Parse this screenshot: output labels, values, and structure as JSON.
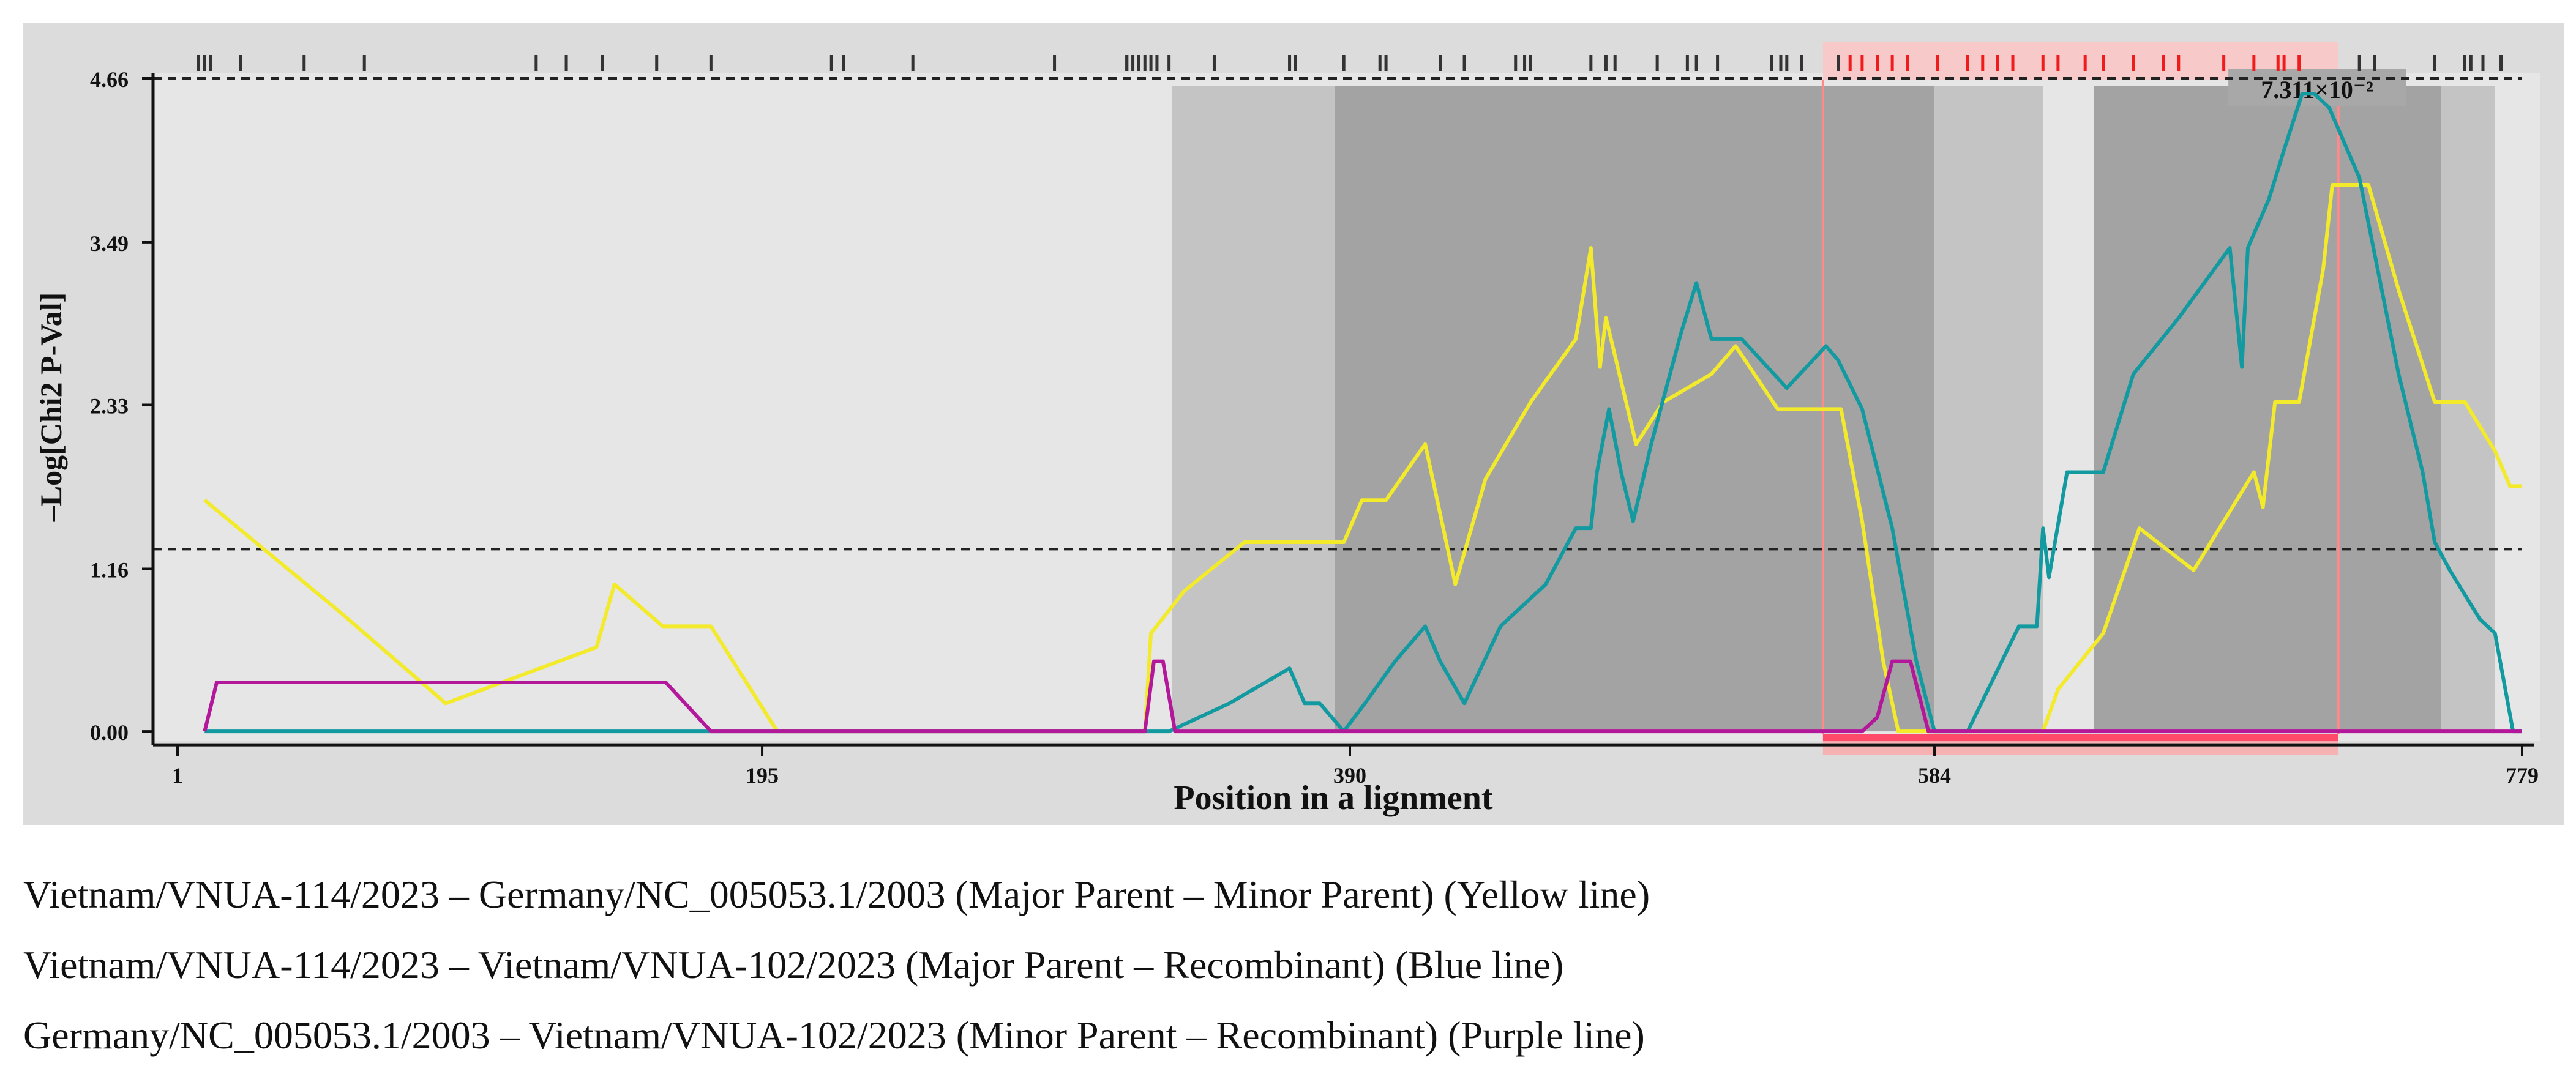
{
  "chart_data": {
    "type": "line",
    "ylabel": "–Log[Chi2 P-Val]",
    "xlabel": "Position in a lignment",
    "x_ticks": [
      1,
      195,
      390,
      584,
      779
    ],
    "y_ticks": [
      "0.00",
      "1.16",
      "2.33",
      "3.49",
      "4.66"
    ],
    "y_tick_values": [
      0.0,
      1.16,
      2.33,
      3.49,
      4.66
    ],
    "xlim": [
      1,
      779
    ],
    "ylim": [
      -0.1,
      4.66
    ],
    "pvalue_label": "7.311×10⁻²",
    "reference_lines": [
      {
        "name": "max-threshold",
        "y": 4.66
      },
      {
        "name": "significance-threshold",
        "y": 1.3
      }
    ],
    "recombination_region": {
      "start": 547,
      "end": 718
    },
    "shaded_regions": [
      {
        "start": 331,
        "end": 385,
        "shade": "light"
      },
      {
        "start": 385,
        "end": 547,
        "shade": "dark"
      },
      {
        "start": 547,
        "end": 584,
        "shade": "dark"
      },
      {
        "start": 584,
        "end": 620,
        "shade": "light"
      },
      {
        "start": 637,
        "end": 752,
        "shade": "dark"
      },
      {
        "start": 752,
        "end": 770,
        "shade": "light"
      }
    ],
    "site_ticks": [
      8,
      10,
      12,
      22,
      43,
      63,
      120,
      130,
      142,
      160,
      178,
      218,
      222,
      245,
      292,
      316,
      316,
      318,
      320,
      322,
      324,
      326,
      330,
      345,
      370,
      372,
      388,
      400,
      402,
      420,
      428,
      445,
      448,
      450,
      470,
      475,
      478,
      492,
      502,
      505,
      512,
      530,
      533,
      535,
      540,
      552,
      556,
      560,
      565,
      570,
      575,
      585,
      595,
      600,
      605,
      610,
      620,
      625,
      634,
      640,
      650,
      660,
      665,
      680,
      690,
      698,
      700,
      705,
      725,
      730,
      750,
      760,
      762,
      766,
      772
    ],
    "red_site_ticks": [
      556,
      560,
      565,
      570,
      575,
      585,
      595,
      600,
      605,
      610,
      620,
      625,
      634,
      640,
      650,
      660,
      665,
      680,
      690,
      698,
      700,
      705
    ],
    "series": [
      {
        "name": "Yellow line",
        "color": "#f2ea2b",
        "points": [
          [
            10,
            1.65
          ],
          [
            55,
            0.85
          ],
          [
            90,
            0.2
          ],
          [
            140,
            0.6
          ],
          [
            146,
            1.05
          ],
          [
            162,
            0.75
          ],
          [
            178,
            0.75
          ],
          [
            200,
            0.0
          ],
          [
            322,
            0.0
          ],
          [
            324,
            0.7
          ],
          [
            335,
            1.0
          ],
          [
            355,
            1.35
          ],
          [
            388,
            1.35
          ],
          [
            394,
            1.65
          ],
          [
            402,
            1.65
          ],
          [
            415,
            2.05
          ],
          [
            425,
            1.05
          ],
          [
            435,
            1.8
          ],
          [
            450,
            2.35
          ],
          [
            465,
            2.8
          ],
          [
            470,
            3.45
          ],
          [
            473,
            2.6
          ],
          [
            475,
            2.95
          ],
          [
            485,
            2.05
          ],
          [
            494,
            2.35
          ],
          [
            510,
            2.55
          ],
          [
            518,
            2.75
          ],
          [
            532,
            2.3
          ],
          [
            547,
            2.3
          ],
          [
            553,
            2.3
          ],
          [
            560,
            1.5
          ],
          [
            567,
            0.5
          ],
          [
            572,
            0.0
          ],
          [
            620,
            0.0
          ],
          [
            625,
            0.3
          ],
          [
            640,
            0.7
          ],
          [
            652,
            1.45
          ],
          [
            670,
            1.15
          ],
          [
            690,
            1.85
          ],
          [
            693,
            1.6
          ],
          [
            697,
            2.35
          ],
          [
            705,
            2.35
          ],
          [
            713,
            3.3
          ],
          [
            716,
            3.9
          ],
          [
            728,
            3.9
          ],
          [
            738,
            3.15
          ],
          [
            750,
            2.35
          ],
          [
            760,
            2.35
          ],
          [
            770,
            2.0
          ],
          [
            775,
            1.75
          ],
          [
            779,
            1.75
          ]
        ]
      },
      {
        "name": "Blue line",
        "color": "#139aa0",
        "points": [
          [
            10,
            0.0
          ],
          [
            330,
            0.0
          ],
          [
            340,
            0.1
          ],
          [
            350,
            0.2
          ],
          [
            370,
            0.45
          ],
          [
            375,
            0.2
          ],
          [
            380,
            0.2
          ],
          [
            388,
            0.0
          ],
          [
            395,
            0.2
          ],
          [
            405,
            0.5
          ],
          [
            415,
            0.75
          ],
          [
            420,
            0.5
          ],
          [
            428,
            0.2
          ],
          [
            440,
            0.75
          ],
          [
            455,
            1.05
          ],
          [
            465,
            1.45
          ],
          [
            470,
            1.45
          ],
          [
            472,
            1.85
          ],
          [
            476,
            2.3
          ],
          [
            480,
            1.85
          ],
          [
            484,
            1.5
          ],
          [
            490,
            2.05
          ],
          [
            500,
            2.85
          ],
          [
            505,
            3.2
          ],
          [
            510,
            2.8
          ],
          [
            520,
            2.8
          ],
          [
            535,
            2.45
          ],
          [
            548,
            2.75
          ],
          [
            552,
            2.65
          ],
          [
            560,
            2.3
          ],
          [
            570,
            1.45
          ],
          [
            578,
            0.5
          ],
          [
            584,
            0.0
          ],
          [
            595,
            0.0
          ],
          [
            612,
            0.75
          ],
          [
            618,
            0.75
          ],
          [
            620,
            1.45
          ],
          [
            622,
            1.1
          ],
          [
            628,
            1.85
          ],
          [
            640,
            1.85
          ],
          [
            650,
            2.55
          ],
          [
            665,
            2.95
          ],
          [
            682,
            3.45
          ],
          [
            686,
            2.6
          ],
          [
            688,
            3.45
          ],
          [
            695,
            3.8
          ],
          [
            700,
            4.15
          ],
          [
            706,
            4.55
          ],
          [
            710,
            4.55
          ],
          [
            715,
            4.45
          ],
          [
            725,
            3.95
          ],
          [
            738,
            2.55
          ],
          [
            746,
            1.85
          ],
          [
            750,
            1.35
          ],
          [
            755,
            1.15
          ],
          [
            765,
            0.8
          ],
          [
            770,
            0.7
          ],
          [
            776,
            0.0
          ],
          [
            779,
            0.0
          ]
        ]
      },
      {
        "name": "Purple line",
        "color": "#b4189a",
        "points": [
          [
            10,
            0.0
          ],
          [
            14,
            0.35
          ],
          [
            163,
            0.35
          ],
          [
            178,
            0.0
          ],
          [
            322,
            0.0
          ],
          [
            325,
            0.5
          ],
          [
            328,
            0.5
          ],
          [
            332,
            0.0
          ],
          [
            560,
            0.0
          ],
          [
            565,
            0.1
          ],
          [
            570,
            0.5
          ],
          [
            576,
            0.5
          ],
          [
            582,
            0.0
          ],
          [
            779,
            0.0
          ]
        ]
      }
    ],
    "legend": [
      "Vietnam/VNUA-114/2023 – Germany/NC_005053.1/2003 (Major Parent – Minor Parent) (Yellow line)",
      "Vietnam/VNUA-114/2023 – Vietnam/VNUA-102/2023 (Major Parent – Recombinant) (Blue line)",
      "Germany/NC_005053.1/2003 – Vietnam/VNUA-102/2023 (Minor Parent – Recombinant) (Purple line)"
    ]
  }
}
